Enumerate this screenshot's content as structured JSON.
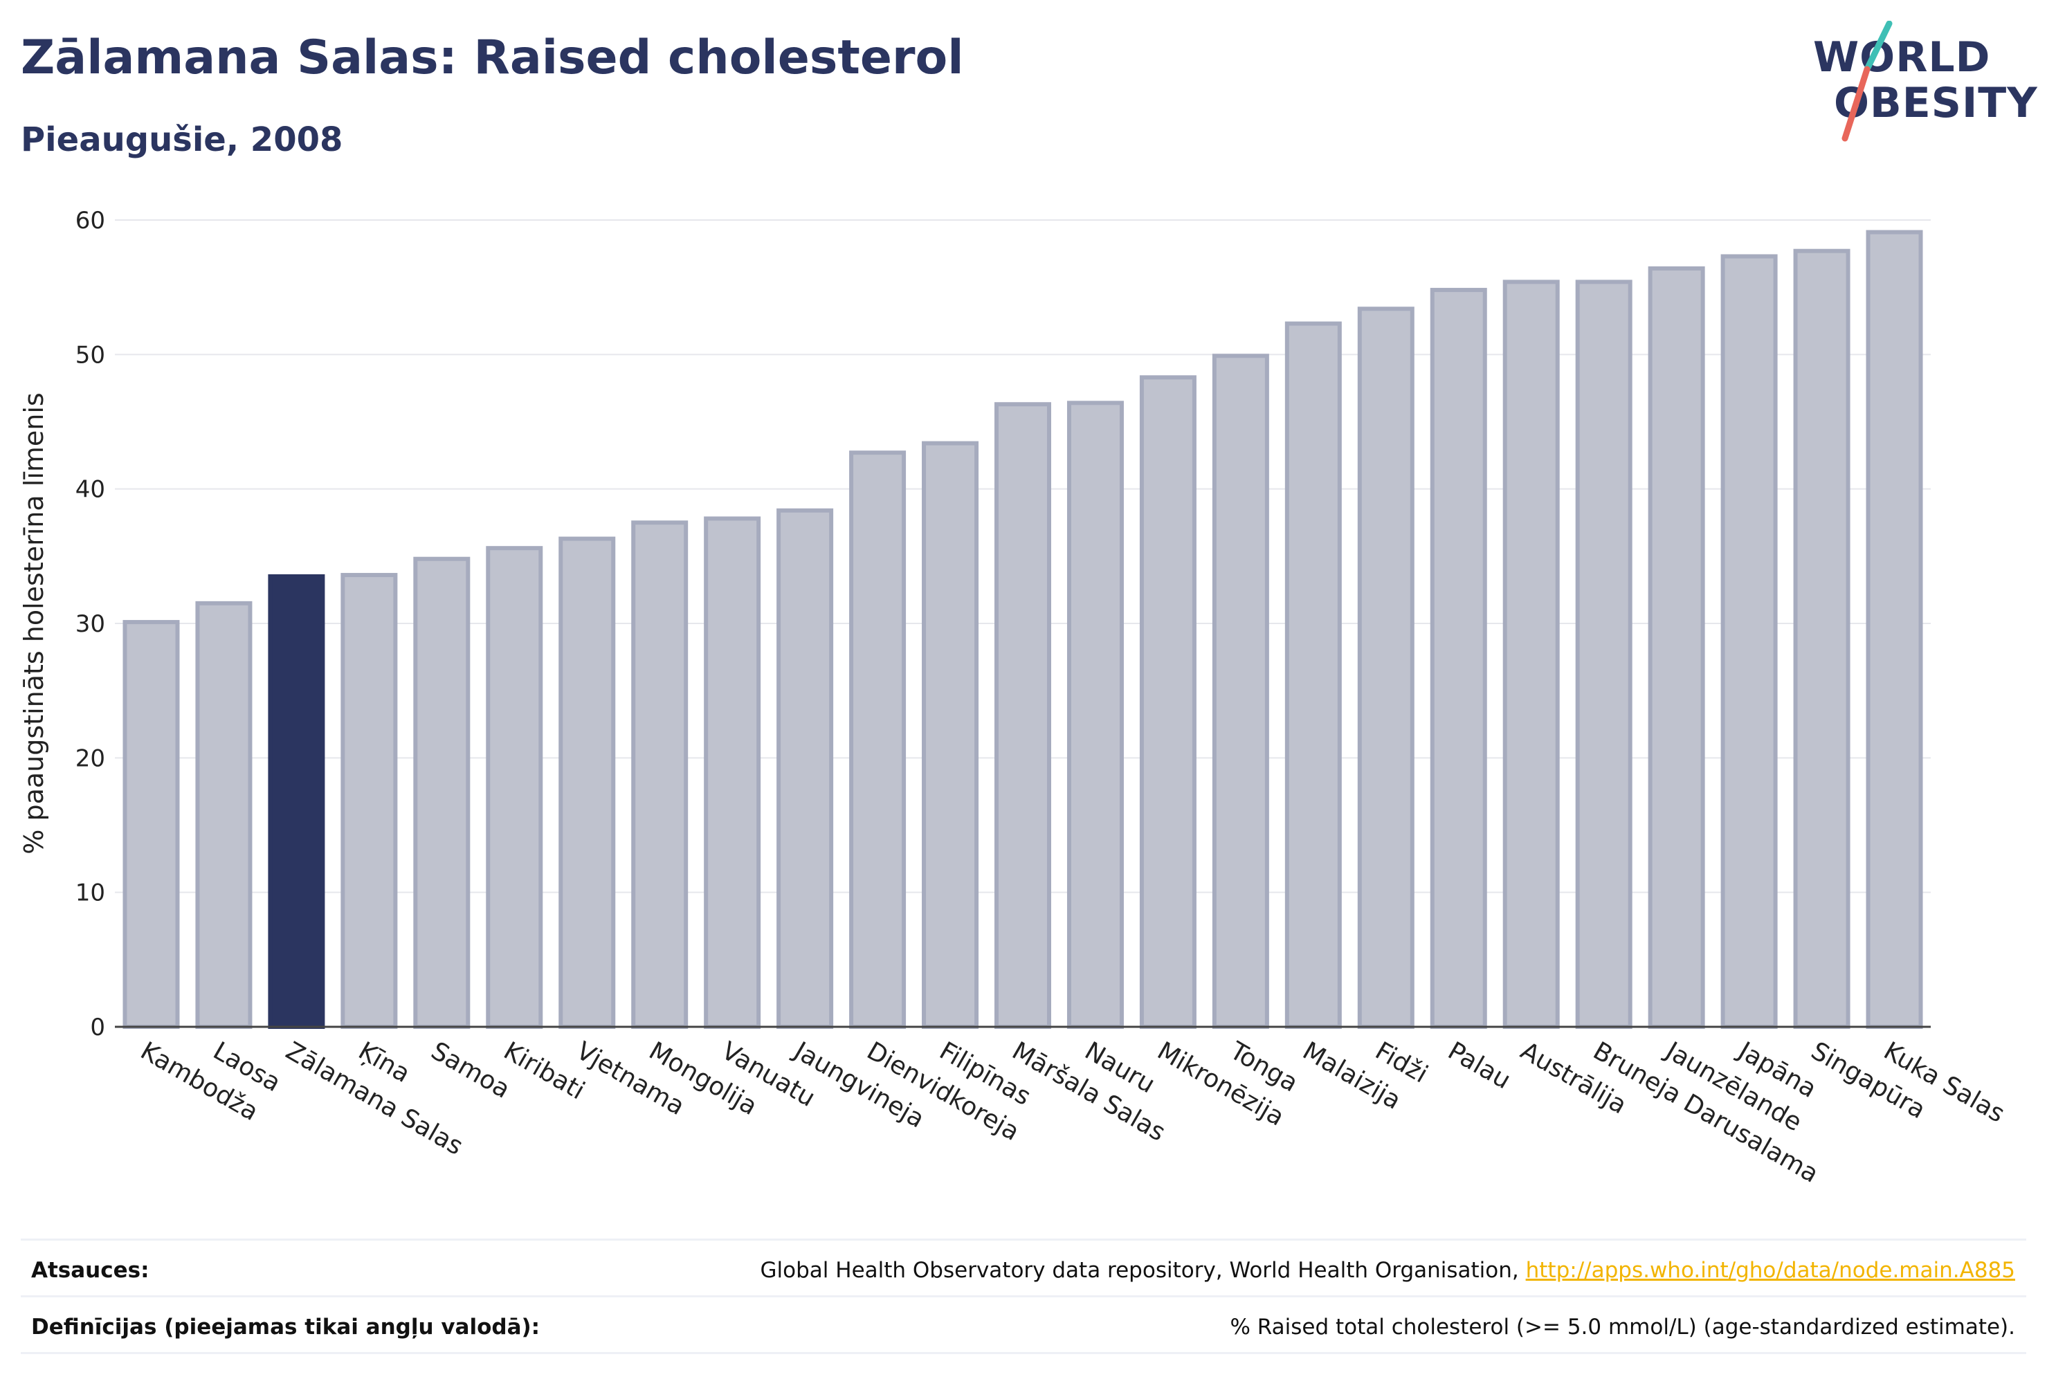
{
  "title": "Zālamana Salas: Raised cholesterol",
  "subtitle": "Pieaugušie, 2008",
  "logo": {
    "line1": "WORLD",
    "line2": "OBESITY",
    "accent_colors": [
      "#3fbfb5",
      "#e8665a"
    ]
  },
  "colors": {
    "highlight": "#2b3560",
    "bar": "#bfc2ce",
    "bar_border": "#a6abbe",
    "grid": "#e6e7ec",
    "axis": "#444444",
    "link": "#f2b400"
  },
  "chart_data": {
    "type": "bar",
    "title": "Zālamana Salas: Raised cholesterol",
    "subtitle": "Pieaugušie, 2008",
    "xlabel": "",
    "ylabel": "% paaugstināts holesterīna līmenis",
    "ylim": [
      0,
      60
    ],
    "yticks": [
      0,
      10,
      20,
      30,
      40,
      50,
      60
    ],
    "grid": true,
    "highlight": "Zālamana Salas",
    "categories": [
      "Kambodža",
      "Laosa",
      "Zālamana Salas",
      "Ķīna",
      "Samoa",
      "Kiribati",
      "Vjetnama",
      "Mongolija",
      "Vanuatu",
      "Jaungvineja",
      "Dienvidkoreja",
      "Filipīnas",
      "Māršala Salas",
      "Nauru",
      "Mikronēzija",
      "Tonga",
      "Malaizija",
      "Fidži",
      "Palau",
      "Austrālija",
      "Bruneja Darusalama",
      "Jaunzēlande",
      "Japāna",
      "Singapūra",
      "Kuka Salas"
    ],
    "values": [
      30.1,
      31.5,
      33.5,
      33.6,
      34.8,
      35.6,
      36.3,
      37.5,
      37.8,
      38.4,
      42.7,
      43.4,
      46.3,
      46.4,
      48.3,
      49.9,
      52.3,
      53.4,
      54.8,
      55.4,
      55.4,
      56.4,
      57.3,
      57.7,
      59.1
    ]
  },
  "footer": {
    "sources_label": "Atsauces:",
    "sources_text": "Global Health Observatory data repository, World Health Organisation, ",
    "sources_link": "http://apps.who.int/gho/data/node.main.A885",
    "definitions_label": "Definīcijas (pieejamas tikai angļu valodā):",
    "definitions_text": "% Raised total cholesterol (>= 5.0 mmol/L) (age-standardized estimate)."
  }
}
